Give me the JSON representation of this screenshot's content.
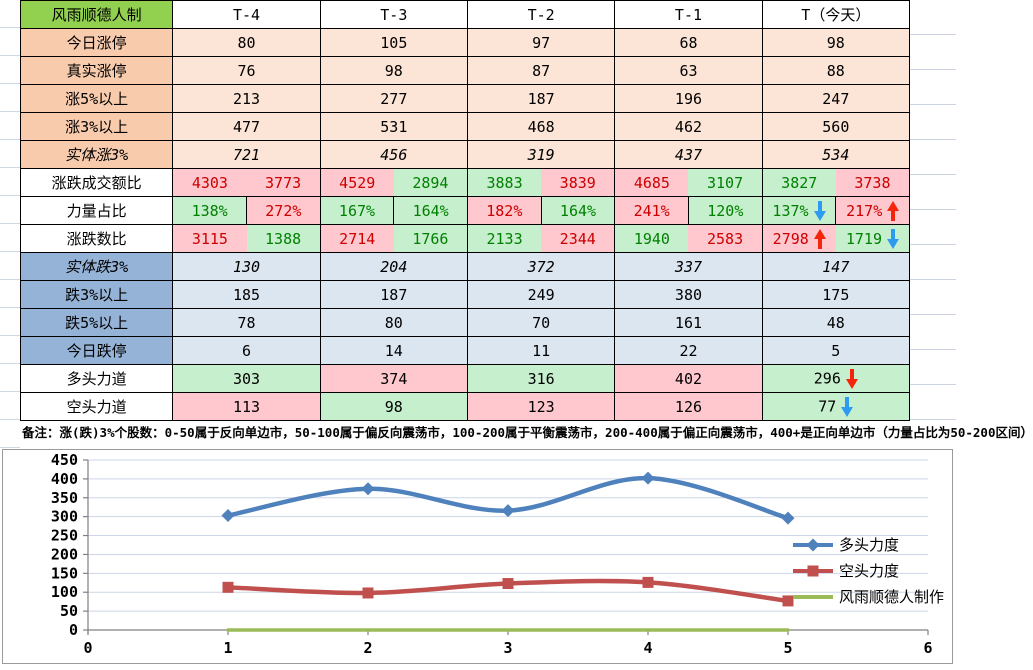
{
  "table": {
    "corner_title": "风雨顺德人制",
    "columns": [
      "T-4",
      "T-3",
      "T-2",
      "T-1",
      "T（今天）"
    ],
    "rows": [
      {
        "key": "today-limit-up",
        "label": "今日涨停",
        "theme": "up",
        "cells": [
          {
            "v": "80"
          },
          {
            "v": "105"
          },
          {
            "v": "97"
          },
          {
            "v": "68"
          },
          {
            "v": "98"
          }
        ]
      },
      {
        "key": "real-limit-up",
        "label": "真实涨停",
        "theme": "up",
        "cells": [
          {
            "v": "76"
          },
          {
            "v": "98"
          },
          {
            "v": "87"
          },
          {
            "v": "63"
          },
          {
            "v": "88"
          }
        ]
      },
      {
        "key": "up-5pct",
        "label": "涨5%以上",
        "theme": "up",
        "cells": [
          {
            "v": "213"
          },
          {
            "v": "277"
          },
          {
            "v": "187"
          },
          {
            "v": "196"
          },
          {
            "v": "247"
          }
        ]
      },
      {
        "key": "up-3pct",
        "label": "涨3%以上",
        "theme": "up",
        "cells": [
          {
            "v": "477"
          },
          {
            "v": "531"
          },
          {
            "v": "468"
          },
          {
            "v": "462"
          },
          {
            "v": "560"
          }
        ]
      },
      {
        "key": "solid-up-3pct",
        "label": "实体涨3%",
        "theme": "up",
        "label_emphasis": true,
        "value_class": "v-green",
        "cells": [
          {
            "v": "721"
          },
          {
            "v": "456"
          },
          {
            "v": "319"
          },
          {
            "v": "437"
          },
          {
            "v": "534"
          }
        ]
      },
      {
        "key": "updown-amount-ratio",
        "label": "涨跌成交额比",
        "theme": "white",
        "split": true,
        "cells": [
          [
            {
              "v": "4303",
              "s": "bad"
            },
            {
              "v": "3773",
              "s": "bad"
            }
          ],
          [
            {
              "v": "4529",
              "s": "bad"
            },
            {
              "v": "2894",
              "s": "good"
            }
          ],
          [
            {
              "v": "3883",
              "s": "good"
            },
            {
              "v": "3839",
              "s": "bad"
            }
          ],
          [
            {
              "v": "4685",
              "s": "bad"
            },
            {
              "v": "3107",
              "s": "good"
            }
          ],
          [
            {
              "v": "3827",
              "s": "good"
            },
            {
              "v": "3738",
              "s": "bad"
            }
          ]
        ]
      },
      {
        "key": "power-ratio",
        "label": "力量占比",
        "theme": "white",
        "split": true,
        "split_border": true,
        "cells": [
          [
            {
              "v": "138%",
              "s": "good"
            },
            {
              "v": "272%",
              "s": "bad"
            }
          ],
          [
            {
              "v": "167%",
              "s": "good"
            },
            {
              "v": "164%",
              "s": "good"
            }
          ],
          [
            {
              "v": "182%",
              "s": "bad"
            },
            {
              "v": "164%",
              "s": "good"
            }
          ],
          [
            {
              "v": "241%",
              "s": "bad"
            },
            {
              "v": "120%",
              "s": "good"
            }
          ],
          [
            {
              "v": "137%",
              "s": "good",
              "arrow": "down-blue"
            },
            {
              "v": "217%",
              "s": "bad",
              "arrow": "up-red"
            }
          ]
        ]
      },
      {
        "key": "updown-count-ratio",
        "label": "涨跌数比",
        "theme": "white",
        "split": true,
        "cells": [
          [
            {
              "v": "3115",
              "s": "bad"
            },
            {
              "v": "1388",
              "s": "good"
            }
          ],
          [
            {
              "v": "2714",
              "s": "bad"
            },
            {
              "v": "1766",
              "s": "good"
            }
          ],
          [
            {
              "v": "2133",
              "s": "good"
            },
            {
              "v": "2344",
              "s": "bad"
            }
          ],
          [
            {
              "v": "1940",
              "s": "good"
            },
            {
              "v": "2583",
              "s": "bad"
            }
          ],
          [
            {
              "v": "2798",
              "s": "bad",
              "arrow": "up-red"
            },
            {
              "v": "1719",
              "s": "good",
              "arrow": "down-blue"
            }
          ]
        ]
      },
      {
        "key": "solid-down-3pct",
        "label": "实体跌3%",
        "theme": "down",
        "label_emphasis": true,
        "value_class": "v-red",
        "cells": [
          {
            "v": "130"
          },
          {
            "v": "204"
          },
          {
            "v": "372"
          },
          {
            "v": "337"
          },
          {
            "v": "147"
          }
        ]
      },
      {
        "key": "down-3pct",
        "label": "跌3%以上",
        "theme": "down",
        "cells": [
          {
            "v": "185"
          },
          {
            "v": "187"
          },
          {
            "v": "249"
          },
          {
            "v": "380"
          },
          {
            "v": "175"
          }
        ]
      },
      {
        "key": "down-5pct",
        "label": "跌5%以上",
        "theme": "down",
        "cells": [
          {
            "v": "78"
          },
          {
            "v": "80"
          },
          {
            "v": "70"
          },
          {
            "v": "161"
          },
          {
            "v": "48"
          }
        ]
      },
      {
        "key": "today-limit-down",
        "label": "今日跌停",
        "theme": "down",
        "cells": [
          {
            "v": "6"
          },
          {
            "v": "14"
          },
          {
            "v": "11"
          },
          {
            "v": "22"
          },
          {
            "v": "5"
          }
        ]
      },
      {
        "key": "bull-force",
        "label": "多头力道",
        "theme": "white",
        "cells": [
          {
            "v": "303",
            "s": "good"
          },
          {
            "v": "374",
            "s": "bad"
          },
          {
            "v": "316",
            "s": "good"
          },
          {
            "v": "402",
            "s": "bad"
          },
          {
            "v": "296",
            "s": "good",
            "arrow": "down-red"
          }
        ]
      },
      {
        "key": "bear-force",
        "label": "空头力道",
        "theme": "white",
        "cells": [
          {
            "v": "113",
            "s": "bad"
          },
          {
            "v": "98",
            "s": "good"
          },
          {
            "v": "123",
            "s": "bad"
          },
          {
            "v": "126",
            "s": "bad"
          },
          {
            "v": "77",
            "s": "good",
            "arrow": "down-blue"
          }
        ]
      }
    ]
  },
  "note": "备注：涨(跌)3%个股数：0-50属于反向单边市，50-100属于偏反向震荡市，100-200属于平衡震荡市，200-400属于偏正向震荡市，400+是正向单边市（力量占比为50-200区间）",
  "chart_data": {
    "type": "line",
    "x": [
      1,
      2,
      3,
      4,
      5
    ],
    "series": [
      {
        "name": "多头力度",
        "values": [
          303,
          374,
          316,
          402,
          296
        ],
        "color": "#4f81bd",
        "marker": "diamond",
        "width": 4.5,
        "smooth": true
      },
      {
        "name": "空头力度",
        "values": [
          113,
          98,
          123,
          126,
          77
        ],
        "color": "#c0504d",
        "marker": "square",
        "width": 4.5,
        "smooth": true
      },
      {
        "name": "风雨顺德人制作",
        "values": [
          0,
          0,
          0,
          0,
          0
        ],
        "color": "#9bbb59",
        "marker": "none",
        "width": 3.5,
        "smooth": false
      }
    ],
    "title": "",
    "xlabel": "",
    "ylabel": "",
    "xlim": [
      0,
      6
    ],
    "xtick_step": 1,
    "ylim": [
      0,
      450
    ],
    "ytick_step": 50,
    "grid": true,
    "legend_position": "right"
  },
  "colors": {
    "header_green": "#92d050",
    "label_peach": "#f8cbad",
    "cell_peach": "#fce4d6",
    "label_blue": "#95b3d7",
    "cell_blue": "#dce6f1",
    "bad_bg": "#ffc7ce",
    "bad_text": "#cc0000",
    "good_bg": "#c6efce",
    "good_text": "#008000",
    "strong_green": "#00b050",
    "strong_red": "#ff0000",
    "arrow_red": "#f5250c",
    "arrow_blue": "#2e9bf0",
    "gridline": "#d0d7e5",
    "chart_grid": "#ccd6e8",
    "chart_axis": "#808080",
    "chart_border": "#9a9a9a"
  }
}
